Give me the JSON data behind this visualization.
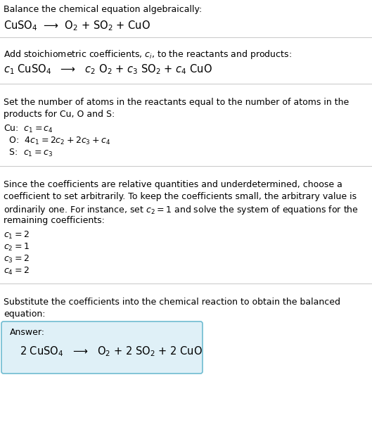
{
  "title_line1": "Balance the chemical equation algebraically:",
  "title_line2": "CuSO$_4$  ⟶  O$_2$ + SO$_2$ + CuO",
  "section2_header": "Add stoichiometric coefficients, $c_i$, to the reactants and products:",
  "section2_eq": "$c_1$ CuSO$_4$   ⟶   $c_2$ O$_2$ + $c_3$ SO$_2$ + $c_4$ CuO",
  "section3_header_1": "Set the number of atoms in the reactants equal to the number of atoms in the",
  "section3_header_2": "products for Cu, O and S:",
  "section3_cu": "Cu:  $c_1 = c_4$",
  "section3_o": "  O:  $4 c_1 = 2 c_2 + 2 c_3 + c_4$",
  "section3_s": "  S:  $c_1 = c_3$",
  "section4_text_1": "Since the coefficients are relative quantities and underdetermined, choose a",
  "section4_text_2": "coefficient to set arbitrarily. To keep the coefficients small, the arbitrary value is",
  "section4_text_3": "ordinarily one. For instance, set $c_2 = 1$ and solve the system of equations for the",
  "section4_text_4": "remaining coefficients:",
  "section4_c1": "$c_1 = 2$",
  "section4_c2": "$c_2 = 1$",
  "section4_c3": "$c_3 = 2$",
  "section4_c4": "$c_4 = 2$",
  "section5_header_1": "Substitute the coefficients into the chemical reaction to obtain the balanced",
  "section5_header_2": "equation:",
  "answer_label": "Answer:",
  "answer_eq": "2 CuSO$_4$   ⟶   O$_2$ + 2 SO$_2$ + 2 CuO",
  "bg_color": "#ffffff",
  "text_color": "#000000",
  "box_edge_color": "#70bcd1",
  "box_fill_color": "#dff0f7",
  "sep_color": "#cccccc",
  "fs": 9.0,
  "fs_eq": 10.5
}
